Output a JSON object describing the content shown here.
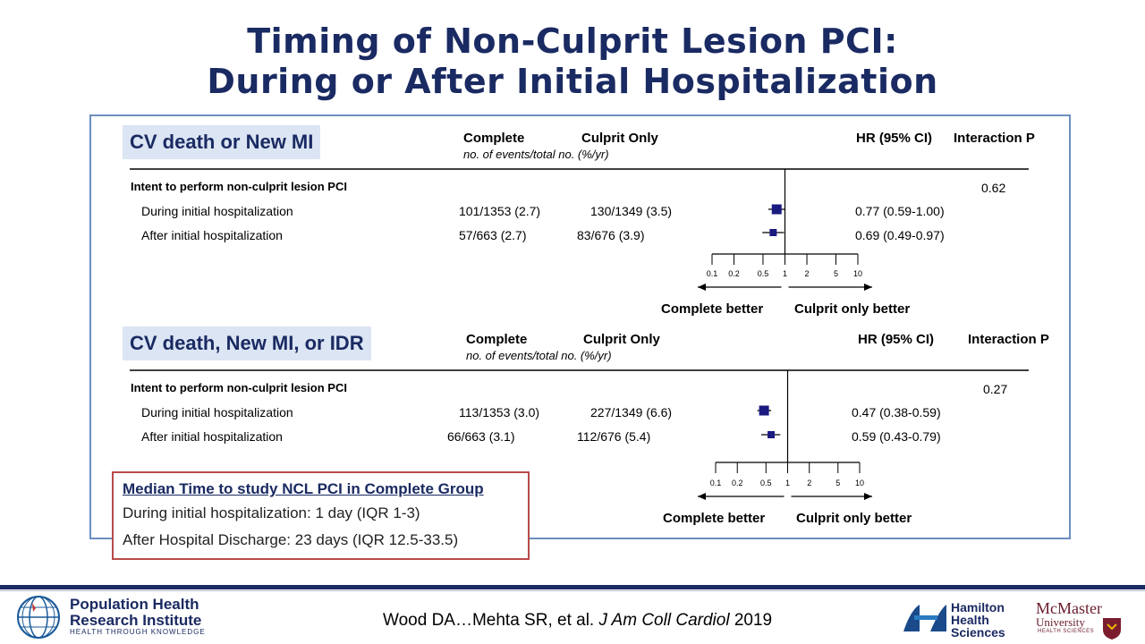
{
  "title_line1": "Timing of Non-Culprit Lesion PCI:",
  "title_line2": "During or After Initial Hospitalization",
  "colors": {
    "navy": "#1a2a62",
    "marker": "#1a1a80",
    "box_border": "#6b8fbf",
    "median_border": "#b94a4a",
    "label_bg": "#dbe5f3"
  },
  "chart_data": [
    {
      "type": "forest",
      "section_label": "CV death or New MI",
      "col_complete": "Complete",
      "col_culprit": "Culprit Only",
      "col_note": "no. of events/total no. (%/yr)",
      "col_hr": "HR (95% CI)",
      "col_interaction": "Interaction P",
      "group_label": "Intent to perform non-culprit lesion PCI",
      "interaction_p": "0.62",
      "rows": [
        {
          "label": "During initial hospitalization",
          "complete": "101/1353 (2.7)",
          "culprit": "130/1349 (3.5)",
          "hr_text": "0.77 (0.59-1.00)",
          "hr": 0.77,
          "lo": 0.59,
          "hi": 1.0
        },
        {
          "label": "After initial hospitalization",
          "complete": "57/663 (2.7)",
          "culprit": "83/676 (3.9)",
          "hr_text": "0.69 (0.49-0.97)",
          "hr": 0.69,
          "lo": 0.49,
          "hi": 0.97
        }
      ],
      "x_scale": "log",
      "xlim": [
        0.1,
        10
      ],
      "ticks": [
        "0.1",
        "0.2",
        "0.5",
        "1",
        "2",
        "5",
        "10"
      ],
      "left_label": "Complete better",
      "right_label": "Culprit only better"
    },
    {
      "type": "forest",
      "section_label": "CV death, New MI, or IDR",
      "col_complete": "Complete",
      "col_culprit": "Culprit Only",
      "col_note": "no. of events/total no. (%/yr)",
      "col_hr": "HR (95% CI)",
      "col_interaction": "Interaction P",
      "group_label": "Intent to perform non-culprit lesion PCI",
      "interaction_p": "0.27",
      "rows": [
        {
          "label": "During initial hospitalization",
          "complete": "113/1353 (3.0)",
          "culprit": "227/1349 (6.6)",
          "hr_text": "0.47 (0.38-0.59)",
          "hr": 0.47,
          "lo": 0.38,
          "hi": 0.59
        },
        {
          "label": "After initial hospitalization",
          "complete": "66/663 (3.1)",
          "culprit": "112/676 (5.4)",
          "hr_text": "0.59 (0.43-0.79)",
          "hr": 0.59,
          "lo": 0.43,
          "hi": 0.79
        }
      ],
      "x_scale": "log",
      "xlim": [
        0.1,
        10
      ],
      "ticks": [
        "0.1",
        "0.2",
        "0.5",
        "1",
        "2",
        "5",
        "10"
      ],
      "left_label": "Complete better",
      "right_label": "Culprit only better"
    }
  ],
  "median_box": {
    "title": "Median Time to study NCL PCI in Complete Group",
    "line1": "During initial hospitalization: 1 day (IQR 1-3)",
    "line2": "After Hospital Discharge: 23 days (IQR 12.5-33.5)"
  },
  "footer": {
    "phri_line1": "Population Health",
    "phri_line2": "Research Institute",
    "phri_tagline": "HEALTH THROUGH KNOWLEDGE",
    "citation_authors": "Wood DA…Mehta SR, et al.",
    "citation_journal": "J Am Coll Cardiol",
    "citation_year": "2019",
    "hhs_line1": "Hamilton",
    "hhs_line2": "Health",
    "hhs_line3": "Sciences",
    "mcm_line1": "McMaster",
    "mcm_line2": "University",
    "mcm_tagline": "HEALTH SCIENCES"
  }
}
